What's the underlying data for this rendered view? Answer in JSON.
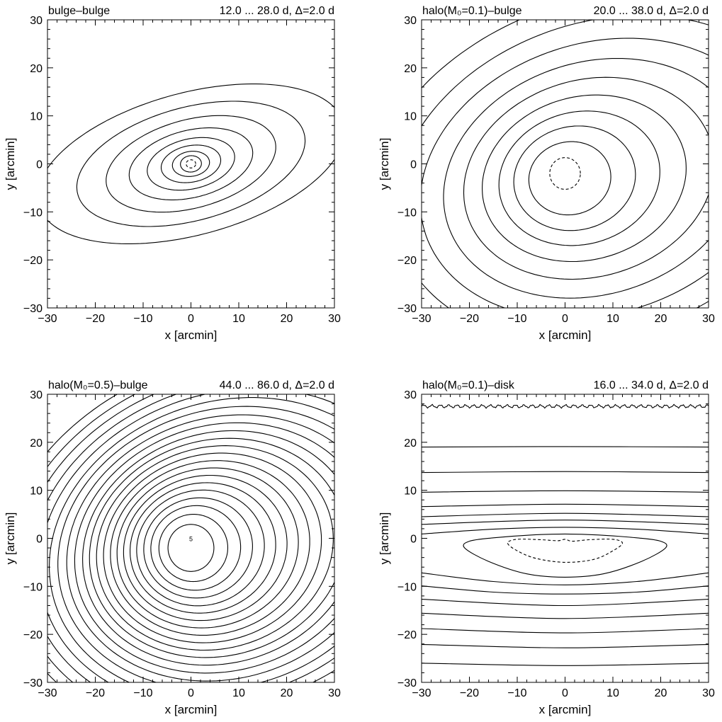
{
  "chart_data": [
    {
      "type": "contour",
      "title": "bulge–bulge",
      "range_label": "12.0 ... 28.0 d, Δ=2.0 d",
      "xlabel": "x [arcmin]",
      "ylabel": "y [arcmin]",
      "xlim": [
        -30,
        30
      ],
      "ylim": [
        -30,
        30
      ],
      "xticks": [
        "−30",
        "−20",
        "−10",
        "0",
        "10",
        "20",
        "30"
      ],
      "yticks": [
        "−30",
        "−20",
        "−10",
        "0",
        "10",
        "20",
        "30"
      ],
      "contour_levels": {
        "min": 12.0,
        "max": 28.0,
        "step": 2.0,
        "unit": "d"
      },
      "contours": [
        {
          "level": 28.0,
          "center": [
            0,
            0
          ],
          "a": 1.0,
          "b": 0.85,
          "angle": 0,
          "dashed": true
        },
        {
          "level": 26.0,
          "center": [
            0,
            0
          ],
          "a": 2.2,
          "b": 1.7,
          "angle": 5,
          "dashed": false
        },
        {
          "level": 24.0,
          "center": [
            0,
            0
          ],
          "a": 3.9,
          "b": 2.6,
          "angle": 8,
          "dashed": false
        },
        {
          "level": 22.0,
          "center": [
            0,
            0
          ],
          "a": 6.3,
          "b": 3.8,
          "angle": 11,
          "dashed": false
        },
        {
          "level": 20.0,
          "center": [
            0,
            0
          ],
          "a": 9.3,
          "b": 5.2,
          "angle": 13,
          "dashed": false
        },
        {
          "level": 18.0,
          "center": [
            0,
            0
          ],
          "a": 13.2,
          "b": 7.0,
          "angle": 14,
          "dashed": false
        },
        {
          "level": 16.0,
          "center": [
            0,
            0
          ],
          "a": 18.2,
          "b": 9.2,
          "angle": 15,
          "dashed": false
        },
        {
          "level": 14.0,
          "center": [
            0,
            0
          ],
          "a": 24.5,
          "b": 11.8,
          "angle": 15,
          "dashed": false
        },
        {
          "level": 12.0,
          "center": [
            0,
            0
          ],
          "a": 33.0,
          "b": 14.8,
          "angle": 15,
          "dashed": false
        }
      ]
    },
    {
      "type": "contour",
      "title": "halo(M₀=0.1)–bulge",
      "range_label": "20.0 ... 38.0 d, Δ=2.0 d",
      "xlabel": "x [arcmin]",
      "ylabel": "y [arcmin]",
      "xlim": [
        -30,
        30
      ],
      "ylim": [
        -30,
        30
      ],
      "xticks": [
        "−30",
        "−20",
        "−10",
        "0",
        "10",
        "20",
        "30"
      ],
      "yticks": [
        "−30",
        "−20",
        "−10",
        "0",
        "10",
        "20",
        "30"
      ],
      "contour_levels": {
        "min": 20.0,
        "max": 38.0,
        "step": 2.0,
        "unit": "d"
      },
      "contours": [
        {
          "level": 38.0,
          "center": [
            0,
            -2
          ],
          "a": 3.2,
          "b": 3.3,
          "angle": 0,
          "dashed": true
        },
        {
          "level": 36.0,
          "center": [
            1,
            -3
          ],
          "a": 8.6,
          "b": 7.6,
          "angle": 10,
          "dashed": false
        },
        {
          "level": 34.0,
          "center": [
            2,
            -3
          ],
          "a": 12.8,
          "b": 10.8,
          "angle": 12,
          "dashed": false
        },
        {
          "level": 32.0,
          "center": [
            3,
            -3
          ],
          "a": 17.0,
          "b": 13.8,
          "angle": 14,
          "dashed": false
        },
        {
          "level": 30.0,
          "center": [
            4,
            -3
          ],
          "a": 21.6,
          "b": 17.0,
          "angle": 15,
          "dashed": false
        },
        {
          "level": 28.0,
          "center": [
            5,
            -3
          ],
          "a": 26.6,
          "b": 20.5,
          "angle": 16,
          "dashed": false
        },
        {
          "level": 26.0,
          "center": [
            6,
            -3
          ],
          "a": 32.0,
          "b": 24.2,
          "angle": 17,
          "dashed": false
        },
        {
          "level": 24.0,
          "center": [
            7,
            -3
          ],
          "a": 38.0,
          "b": 28.2,
          "angle": 17,
          "dashed": false
        },
        {
          "level": 22.0,
          "center": [
            8,
            -3
          ],
          "a": 44.6,
          "b": 32.6,
          "angle": 18,
          "dashed": false
        },
        {
          "level": 20.0,
          "center": [
            9,
            -3
          ],
          "a": 52.0,
          "b": 37.5,
          "angle": 18,
          "dashed": false
        }
      ]
    },
    {
      "type": "contour",
      "title": "halo(M₀=0.5)–bulge",
      "range_label": "44.0 ... 86.0 d, Δ=2.0 d",
      "xlabel": "x [arcmin]",
      "ylabel": "y [arcmin]",
      "xlim": [
        -30,
        30
      ],
      "ylim": [
        -30,
        30
      ],
      "xticks": [
        "−30",
        "−20",
        "−10",
        "0",
        "10",
        "20",
        "30"
      ],
      "yticks": [
        "−30",
        "−20",
        "−10",
        "0",
        "10",
        "20",
        "30"
      ],
      "contour_levels": {
        "min": 44.0,
        "max": 86.0,
        "step": 2.0,
        "unit": "d"
      },
      "center_label": "5",
      "contours": [
        {
          "level": 86.0,
          "center": [
            0,
            -2
          ],
          "a": 4.8,
          "b": 4.9,
          "angle": 0,
          "dashed": false
        },
        {
          "level": 84.0,
          "center": [
            0.5,
            -2
          ],
          "a": 7.2,
          "b": 7.0,
          "angle": 6,
          "dashed": false
        },
        {
          "level": 82.0,
          "center": [
            1,
            -2
          ],
          "a": 9.4,
          "b": 8.8,
          "angle": 8,
          "dashed": false
        },
        {
          "level": 80.0,
          "center": [
            1.5,
            -2
          ],
          "a": 11.4,
          "b": 10.4,
          "angle": 10,
          "dashed": false
        },
        {
          "level": 78.0,
          "center": [
            2,
            -2
          ],
          "a": 13.4,
          "b": 12.0,
          "angle": 11,
          "dashed": false
        },
        {
          "level": 76.0,
          "center": [
            2.5,
            -2
          ],
          "a": 15.3,
          "b": 13.5,
          "angle": 12,
          "dashed": false
        },
        {
          "level": 74.0,
          "center": [
            3,
            -2
          ],
          "a": 17.2,
          "b": 15.0,
          "angle": 13,
          "dashed": false
        },
        {
          "level": 72.0,
          "center": [
            3.5,
            -2
          ],
          "a": 19.1,
          "b": 16.5,
          "angle": 14,
          "dashed": false
        },
        {
          "level": 70.0,
          "center": [
            4,
            -2
          ],
          "a": 21.0,
          "b": 18.0,
          "angle": 14,
          "dashed": false
        },
        {
          "level": 68.0,
          "center": [
            4.5,
            -2
          ],
          "a": 23.0,
          "b": 19.5,
          "angle": 15,
          "dashed": false
        },
        {
          "level": 66.0,
          "center": [
            5,
            -2
          ],
          "a": 25.0,
          "b": 21.0,
          "angle": 15,
          "dashed": false
        },
        {
          "level": 64.0,
          "center": [
            5.5,
            -2
          ],
          "a": 27.0,
          "b": 22.5,
          "angle": 15,
          "dashed": false
        },
        {
          "level": 62.0,
          "center": [
            6,
            -2
          ],
          "a": 29.0,
          "b": 24.0,
          "angle": 16,
          "dashed": false
        },
        {
          "level": 60.0,
          "center": [
            6.5,
            -2
          ],
          "a": 31.2,
          "b": 25.6,
          "angle": 16,
          "dashed": false
        },
        {
          "level": 58.0,
          "center": [
            7,
            -2
          ],
          "a": 33.4,
          "b": 27.2,
          "angle": 16,
          "dashed": false
        },
        {
          "level": 56.0,
          "center": [
            7.5,
            -2
          ],
          "a": 35.8,
          "b": 28.9,
          "angle": 16,
          "dashed": false
        },
        {
          "level": 54.0,
          "center": [
            8,
            -2
          ],
          "a": 38.2,
          "b": 30.6,
          "angle": 17,
          "dashed": false
        },
        {
          "level": 52.0,
          "center": [
            8.5,
            -2
          ],
          "a": 40.8,
          "b": 32.4,
          "angle": 17,
          "dashed": false
        },
        {
          "level": 50.0,
          "center": [
            9,
            -2
          ],
          "a": 43.4,
          "b": 34.2,
          "angle": 17,
          "dashed": false
        },
        {
          "level": 48.0,
          "center": [
            9.5,
            -2
          ],
          "a": 46.2,
          "b": 36.1,
          "angle": 17,
          "dashed": false
        },
        {
          "level": 46.0,
          "center": [
            10,
            -2
          ],
          "a": 49.0,
          "b": 38.0,
          "angle": 17,
          "dashed": false
        },
        {
          "level": 44.0,
          "center": [
            10.5,
            -2
          ],
          "a": 52.0,
          "b": 40.0,
          "angle": 17,
          "dashed": false
        }
      ]
    },
    {
      "type": "contour",
      "title": "halo(M₀=0.1)–disk",
      "range_label": "16.0 ... 34.0 d, Δ=2.0 d",
      "xlabel": "x [arcmin]",
      "ylabel": "y [arcmin]",
      "xlim": [
        -30,
        30
      ],
      "ylim": [
        -30,
        30
      ],
      "xticks": [
        "−30",
        "−20",
        "−10",
        "0",
        "10",
        "20",
        "30"
      ],
      "yticks": [
        "−30",
        "−20",
        "−10",
        "0",
        "10",
        "20",
        "30"
      ],
      "contour_levels": {
        "min": 16.0,
        "max": 34.0,
        "step": 2.0,
        "unit": "d"
      },
      "inner_contours": [
        {
          "level": 34.0,
          "dashed": true,
          "points": [
            [
              -12,
              -1
            ],
            [
              -10,
              -2.6
            ],
            [
              -6,
              -4.2
            ],
            [
              0,
              -5
            ],
            [
              6,
              -4.4
            ],
            [
              10,
              -2.6
            ],
            [
              12,
              -1
            ],
            [
              10,
              -0.2
            ],
            [
              5,
              -0.3
            ],
            [
              1.5,
              -0.6
            ],
            [
              0,
              -0.2
            ],
            [
              -1.5,
              -0.5
            ],
            [
              -5,
              -0.3
            ],
            [
              -10,
              -0.2
            ]
          ]
        },
        {
          "level": 32.0,
          "dashed": false,
          "points": [
            [
              -21,
              -2
            ],
            [
              -20,
              -0.6
            ],
            [
              -15,
              0.1
            ],
            [
              -7,
              0.7
            ],
            [
              0,
              0.9
            ],
            [
              7,
              0.7
            ],
            [
              15,
              0.1
            ],
            [
              20,
              -0.6
            ],
            [
              21,
              -2
            ],
            [
              16,
              -4.8
            ],
            [
              8,
              -7.4
            ],
            [
              0,
              -8.1
            ],
            [
              -8,
              -7.4
            ],
            [
              -16,
              -4.8
            ]
          ]
        }
      ],
      "open_contours": [
        {
          "level": 30.0,
          "points": [
            [
              -30,
              0.9
            ],
            [
              -15,
              1.9
            ],
            [
              0,
              2.3
            ],
            [
              15,
              1.9
            ],
            [
              30,
              0.9
            ]
          ]
        },
        {
          "level": 30.0,
          "points": [
            [
              -30,
              -7.2
            ],
            [
              -15,
              -9.0
            ],
            [
              0,
              -9.7
            ],
            [
              15,
              -9.0
            ],
            [
              30,
              -7.2
            ]
          ]
        },
        {
          "level": 28.0,
          "points": [
            [
              -30,
              2.9
            ],
            [
              0,
              3.8
            ],
            [
              30,
              2.9
            ]
          ]
        },
        {
          "level": 28.0,
          "points": [
            [
              -30,
              -9.9
            ],
            [
              -15,
              -11.2
            ],
            [
              0,
              -11.6
            ],
            [
              15,
              -11.2
            ],
            [
              30,
              -9.9
            ]
          ]
        },
        {
          "level": 26.0,
          "points": [
            [
              -30,
              4.5
            ],
            [
              0,
              5.2
            ],
            [
              30,
              4.5
            ]
          ]
        },
        {
          "level": 26.0,
          "points": [
            [
              -30,
              -12.7
            ],
            [
              0,
              -14.0
            ],
            [
              30,
              -12.7
            ]
          ]
        },
        {
          "level": 24.0,
          "points": [
            [
              -30,
              6.6
            ],
            [
              0,
              7.1
            ],
            [
              30,
              6.6
            ]
          ]
        },
        {
          "level": 24.0,
          "points": [
            [
              -30,
              -15.6
            ],
            [
              0,
              -16.7
            ],
            [
              30,
              -15.6
            ]
          ]
        },
        {
          "level": 22.0,
          "points": [
            [
              -30,
              9.6
            ],
            [
              0,
              9.9
            ],
            [
              30,
              9.6
            ]
          ]
        },
        {
          "level": 22.0,
          "points": [
            [
              -30,
              -18.8
            ],
            [
              0,
              -19.7
            ],
            [
              30,
              -18.8
            ]
          ]
        },
        {
          "level": 20.0,
          "points": [
            [
              -30,
              13.7
            ],
            [
              0,
              13.9
            ],
            [
              30,
              13.7
            ]
          ]
        },
        {
          "level": 20.0,
          "points": [
            [
              -30,
              -22.1
            ],
            [
              0,
              -22.8
            ],
            [
              30,
              -22.1
            ]
          ]
        },
        {
          "level": 18.0,
          "points": [
            [
              -30,
              19.0
            ],
            [
              0,
              19.1
            ],
            [
              30,
              19.0
            ]
          ]
        },
        {
          "level": 18.0,
          "points": [
            [
              -30,
              -26.0
            ],
            [
              0,
              -26.5
            ],
            [
              30,
              -26.0
            ]
          ]
        },
        {
          "level": 16.0,
          "wavy": true,
          "points": [
            [
              -30,
              27.5
            ],
            [
              30,
              27.5
            ]
          ]
        }
      ]
    }
  ]
}
